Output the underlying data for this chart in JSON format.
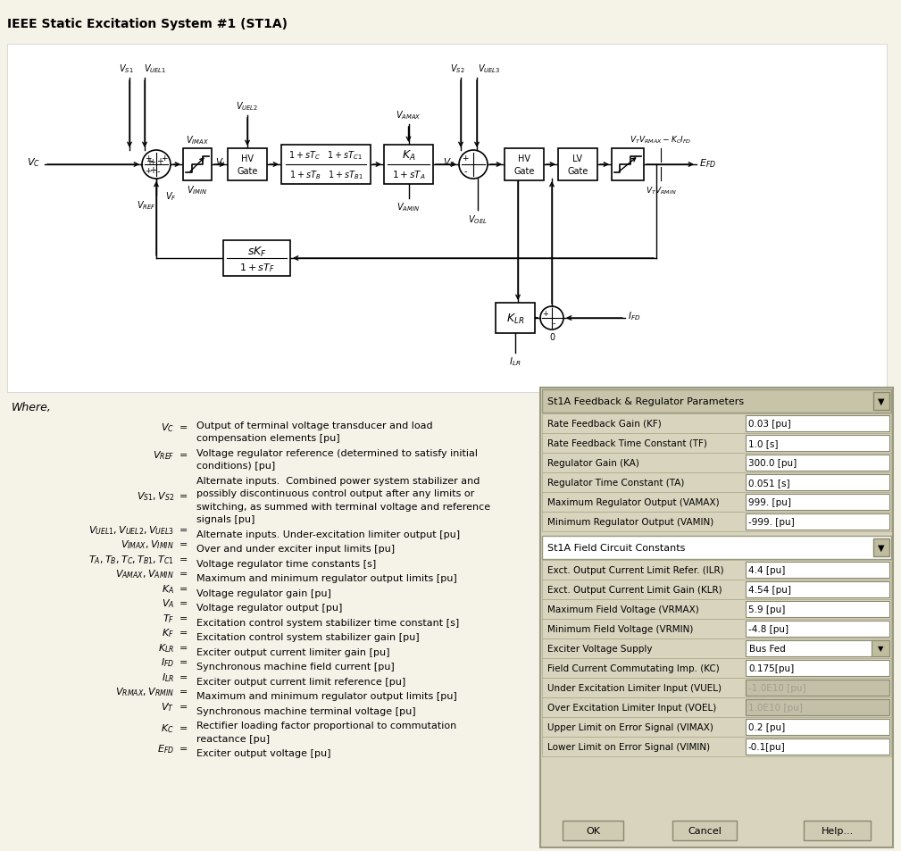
{
  "title": "IEEE Static Excitation System #1 (ST1A)",
  "bg_color": "#f5f2e8",
  "feedback_params_title": "St1A Feedback & Regulator Parameters",
  "feedback_params": [
    [
      "Rate Feedback Gain (KF)",
      "0.03 [pu]"
    ],
    [
      "Rate Feedback Time Constant (TF)",
      "1.0 [s]"
    ],
    [
      "Regulator Gain (KA)",
      "300.0 [pu]"
    ],
    [
      "Regulator Time Constant (TA)",
      "0.051 [s]"
    ],
    [
      "Maximum Regulator Output (VAMAX)",
      "999. [pu]"
    ],
    [
      "Minimum Regulator Output (VAMIN)",
      "-999. [pu]"
    ]
  ],
  "field_params_title": "St1A Field Circuit Constants",
  "field_params": [
    [
      "Exct. Output Current Limit Refer. (ILR)",
      "4.4 [pu]",
      false,
      false
    ],
    [
      "Exct. Output Current Limit Gain (KLR)",
      "4.54 [pu]",
      false,
      false
    ],
    [
      "Maximum Field Voltage (VRMAX)",
      "5.9 [pu]",
      false,
      false
    ],
    [
      "Minimum Field Voltage (VRMIN)",
      "-4.8 [pu]",
      false,
      false
    ],
    [
      "Exciter Voltage Supply",
      "Bus Fed",
      true,
      false
    ],
    [
      "Field Current Commutating Imp. (KC)",
      "0.175[pu]",
      false,
      false
    ],
    [
      "Under Excitation Limiter Input (VUEL)",
      "-1.0E10 [pu]",
      false,
      true
    ],
    [
      "Over Excitation Limiter Input (VOEL)",
      "1.0E10 [pu]",
      false,
      true
    ],
    [
      "Upper Limit on Error Signal (VIMAX)",
      "0.2 [pu]",
      false,
      false
    ],
    [
      "Lower Limit on Error Signal (VIMIN)",
      "-0.1[pu]",
      false,
      false
    ]
  ],
  "where_terms": [
    [
      "V_C",
      "Output of terminal voltage transducer and load\ncompensation elements [pu]",
      2
    ],
    [
      "V_{REF}",
      "Voltage regulator reference (determined to satisfy initial\nconditions) [pu]",
      2
    ],
    [
      "V_{S1}, V_{S2}",
      "Alternate inputs.  Combined power system stabilizer and\npossibly discontinuous control output after any limits or\nswitching, as summed with terminal voltage and reference\nsignals [pu]",
      4
    ],
    [
      "V_{UEL1}, V_{UEL2}, V_{UEL3}",
      "Alternate inputs. Under-excitation limiter output [pu]",
      1
    ],
    [
      "V_{IMAX}, V_{IMIN}",
      "Over and under exciter input limits [pu]",
      1
    ],
    [
      "T_A, T_B, T_C, T_{B1}, T_{C1}",
      "Voltage regulator time constants [s]",
      1
    ],
    [
      "V_{AMAX}, V_{AMIN}",
      "Maximum and minimum regulator output limits [pu]",
      1
    ],
    [
      "K_A",
      "Voltage regulator gain [pu]",
      1
    ],
    [
      "V_A",
      "Voltage regulator output [pu]",
      1
    ],
    [
      "T_F",
      "Excitation control system stabilizer time constant [s]",
      1
    ],
    [
      "K_F",
      "Excitation control system stabilizer gain [pu]",
      1
    ],
    [
      "K_{LR}",
      "Exciter output current limiter gain [pu]",
      1
    ],
    [
      "I_{FD}",
      "Synchronous machine field current [pu]",
      1
    ],
    [
      "I_{LR}",
      "Exciter output current limit reference [pu]",
      1
    ],
    [
      "V_{RMAX}, V_{RMIN}",
      "Maximum and minimum regulator output limits [pu]",
      1
    ],
    [
      "V_T",
      "Synchronous machine terminal voltage [pu]",
      1
    ],
    [
      "K_C",
      "Rectifier loading factor proportional to commutation\nreactance [pu]",
      2
    ],
    [
      "E_{FD}",
      "Exciter output voltage [pu]",
      1
    ]
  ]
}
